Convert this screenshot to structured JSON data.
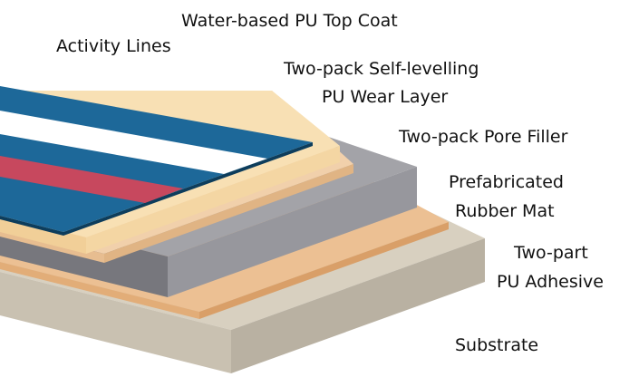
{
  "layers": [
    {
      "label": "Water-based PU Top Coat"
    },
    {
      "label": "Activity Lines"
    },
    {
      "label": [
        "Two-pack Self-levelling",
        "PU Wear Layer"
      ]
    },
    {
      "label": "Two-pack Pore Filler"
    },
    {
      "label": [
        "Prefabricated",
        "Rubber Mat"
      ]
    },
    {
      "label": [
        "Two-part",
        "PU Adhesive"
      ]
    },
    {
      "label": "Substrate"
    }
  ]
}
